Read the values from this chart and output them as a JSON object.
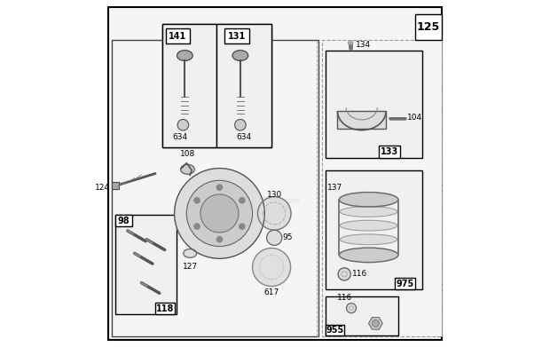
{
  "bg_color": "#ffffff",
  "page_number": "125"
}
